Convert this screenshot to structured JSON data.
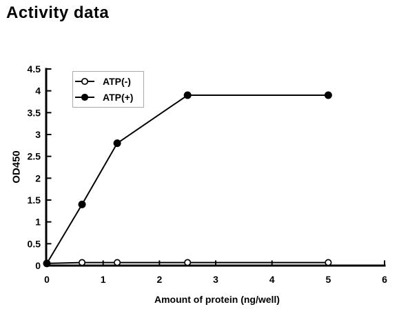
{
  "chart_data": {
    "type": "line",
    "title": "Activity data",
    "xlabel": "Amount of protein (ng/well)",
    "ylabel": "OD450",
    "xlim": [
      0,
      6
    ],
    "ylim": [
      0,
      4.5
    ],
    "x_ticks": [
      0,
      1,
      2,
      3,
      4,
      5,
      6
    ],
    "x_tick_labels": [
      "0",
      "1",
      "2",
      "3",
      "4",
      "5",
      "6"
    ],
    "y_ticks": [
      0,
      0.5,
      1,
      1.5,
      2,
      2.5,
      3,
      3.5,
      4,
      4.5
    ],
    "y_tick_labels": [
      "0",
      "0.5",
      "1",
      "1.5",
      "2",
      "2.5",
      "3",
      "3.5",
      "4",
      "4.5"
    ],
    "grid": false,
    "legend": {
      "position": "top-left-inside",
      "border_color": "#a9a9a9",
      "background": "#ffffff"
    },
    "series": [
      {
        "name": "ATP(-)",
        "marker": "open-circle",
        "color": "#000000",
        "x": [
          0,
          0.625,
          1.25,
          2.5,
          5
        ],
        "values": [
          0.05,
          0.07,
          0.07,
          0.07,
          0.07
        ]
      },
      {
        "name": "ATP(+)",
        "marker": "filled-circle",
        "color": "#000000",
        "x": [
          0,
          0.625,
          1.25,
          2.5,
          5
        ],
        "values": [
          0.05,
          1.4,
          2.8,
          3.9,
          3.9
        ]
      }
    ],
    "colors": {
      "axis": "#000000",
      "text": "#000000",
      "background": "#ffffff"
    }
  }
}
